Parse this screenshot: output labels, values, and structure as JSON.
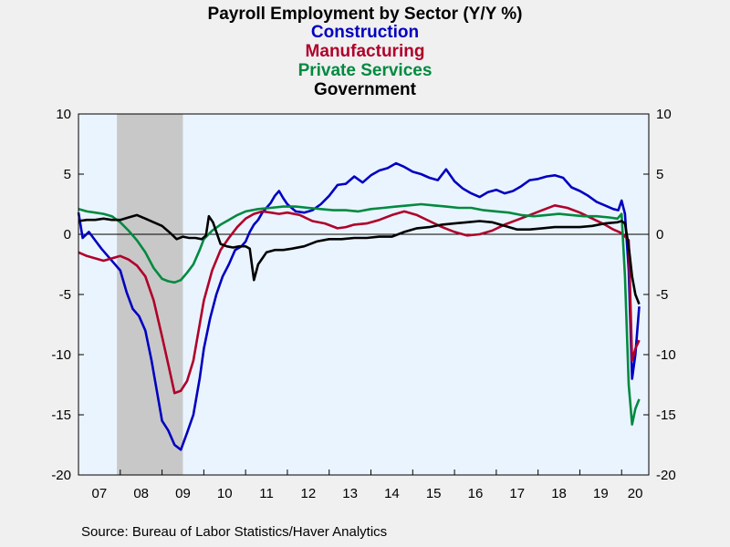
{
  "chart_data": {
    "type": "line",
    "title": "Payroll Employment by Sector (Y/Y %)",
    "xlabel": "",
    "ylabel": "",
    "ylim": [
      -20,
      10
    ],
    "yticks": [
      10,
      5,
      0,
      -5,
      -10,
      -15,
      -20
    ],
    "xlim": [
      2007.0,
      2020.65
    ],
    "year_labels": [
      "07",
      "08",
      "09",
      "10",
      "11",
      "12",
      "13",
      "14",
      "15",
      "16",
      "17",
      "18",
      "19",
      "20"
    ],
    "recession": {
      "start": 2007.92,
      "end": 2009.5,
      "color": "#c8c8c8"
    },
    "plot_background": "#eaf4ff",
    "zero_line": true,
    "source": "Source:  Bureau of Labor Statistics/Haver Analytics",
    "series": [
      {
        "name": "Construction",
        "color": "#0000c0",
        "x": [
          2007.0,
          2007.1,
          2007.25,
          2007.4,
          2007.55,
          2007.7,
          2007.85,
          2008.0,
          2008.15,
          2008.3,
          2008.45,
          2008.6,
          2008.75,
          2008.9,
          2009.0,
          2009.15,
          2009.3,
          2009.45,
          2009.6,
          2009.75,
          2009.9,
          2010.0,
          2010.15,
          2010.3,
          2010.45,
          2010.6,
          2010.75,
          2010.9,
          2011.0,
          2011.1,
          2011.2,
          2011.3,
          2011.4,
          2011.5,
          2011.6,
          2011.7,
          2011.8,
          2011.9,
          2012.0,
          2012.2,
          2012.4,
          2012.6,
          2012.8,
          2013.0,
          2013.2,
          2013.4,
          2013.6,
          2013.8,
          2014.0,
          2014.2,
          2014.4,
          2014.6,
          2014.8,
          2015.0,
          2015.2,
          2015.4,
          2015.6,
          2015.8,
          2016.0,
          2016.2,
          2016.4,
          2016.6,
          2016.8,
          2017.0,
          2017.2,
          2017.4,
          2017.6,
          2017.8,
          2018.0,
          2018.2,
          2018.4,
          2018.6,
          2018.8,
          2019.0,
          2019.2,
          2019.4,
          2019.6,
          2019.8,
          2019.92,
          2020.0,
          2020.08,
          2020.17,
          2020.25,
          2020.33,
          2020.42
        ],
        "values": [
          1.8,
          -0.3,
          0.2,
          -0.5,
          -1.2,
          -1.8,
          -2.4,
          -3.0,
          -4.8,
          -6.2,
          -6.8,
          -8.0,
          -10.5,
          -13.5,
          -15.5,
          -16.3,
          -17.5,
          -17.9,
          -16.5,
          -15.0,
          -12.0,
          -9.5,
          -7.0,
          -5.0,
          -3.5,
          -2.5,
          -1.3,
          -1.0,
          -0.6,
          0.2,
          0.8,
          1.2,
          1.8,
          2.2,
          2.6,
          3.2,
          3.6,
          3.0,
          2.5,
          1.9,
          1.8,
          2.0,
          2.5,
          3.2,
          4.1,
          4.2,
          4.8,
          4.3,
          4.9,
          5.3,
          5.5,
          5.9,
          5.6,
          5.2,
          5.0,
          4.7,
          4.5,
          5.4,
          4.4,
          3.8,
          3.4,
          3.1,
          3.5,
          3.7,
          3.4,
          3.6,
          4.0,
          4.5,
          4.6,
          4.8,
          4.9,
          4.7,
          3.9,
          3.6,
          3.2,
          2.7,
          2.4,
          2.1,
          2.0,
          2.8,
          1.7,
          -3.0,
          -12.0,
          -10.0,
          -6.0
        ]
      },
      {
        "name": "Manufacturing",
        "color": "#b0002a",
        "x": [
          2007.0,
          2007.2,
          2007.4,
          2007.6,
          2007.8,
          2008.0,
          2008.2,
          2008.4,
          2008.6,
          2008.8,
          2009.0,
          2009.15,
          2009.3,
          2009.45,
          2009.6,
          2009.75,
          2009.9,
          2010.0,
          2010.2,
          2010.4,
          2010.6,
          2010.8,
          2011.0,
          2011.2,
          2011.4,
          2011.6,
          2011.8,
          2012.0,
          2012.3,
          2012.6,
          2012.9,
          2013.2,
          2013.4,
          2013.6,
          2013.9,
          2014.2,
          2014.5,
          2014.8,
          2015.1,
          2015.4,
          2015.7,
          2016.0,
          2016.3,
          2016.6,
          2016.9,
          2017.2,
          2017.5,
          2017.8,
          2018.1,
          2018.4,
          2018.7,
          2019.0,
          2019.3,
          2019.6,
          2019.8,
          2020.0,
          2020.17,
          2020.25,
          2020.33,
          2020.42
        ],
        "values": [
          -1.5,
          -1.8,
          -2.0,
          -2.2,
          -2.0,
          -1.8,
          -2.1,
          -2.6,
          -3.5,
          -5.5,
          -8.5,
          -10.8,
          -13.2,
          -13.0,
          -12.2,
          -10.5,
          -7.5,
          -5.5,
          -3.0,
          -1.3,
          -0.3,
          0.6,
          1.3,
          1.7,
          1.9,
          1.8,
          1.7,
          1.8,
          1.6,
          1.1,
          0.9,
          0.5,
          0.6,
          0.8,
          0.9,
          1.2,
          1.6,
          1.9,
          1.6,
          1.1,
          0.6,
          0.2,
          -0.1,
          0.0,
          0.3,
          0.8,
          1.2,
          1.6,
          2.0,
          2.4,
          2.2,
          1.8,
          1.3,
          0.8,
          0.4,
          0.1,
          -0.5,
          -10.5,
          -9.5,
          -8.8
        ]
      },
      {
        "name": "Private Services",
        "color": "#008a40",
        "x": [
          2007.0,
          2007.2,
          2007.4,
          2007.6,
          2007.8,
          2008.0,
          2008.2,
          2008.4,
          2008.6,
          2008.8,
          2009.0,
          2009.15,
          2009.3,
          2009.45,
          2009.6,
          2009.75,
          2009.9,
          2010.0,
          2010.2,
          2010.4,
          2010.6,
          2010.8,
          2011.0,
          2011.3,
          2011.6,
          2011.9,
          2012.2,
          2012.5,
          2012.8,
          2013.1,
          2013.4,
          2013.7,
          2014.0,
          2014.3,
          2014.6,
          2014.9,
          2015.2,
          2015.5,
          2015.8,
          2016.1,
          2016.4,
          2016.7,
          2017.0,
          2017.3,
          2017.6,
          2017.9,
          2018.2,
          2018.5,
          2018.8,
          2019.1,
          2019.4,
          2019.7,
          2019.9,
          2020.0,
          2020.08,
          2020.17,
          2020.25,
          2020.33,
          2020.42
        ],
        "values": [
          2.1,
          1.9,
          1.8,
          1.7,
          1.5,
          1.0,
          0.3,
          -0.5,
          -1.5,
          -2.8,
          -3.7,
          -3.9,
          -4.0,
          -3.8,
          -3.2,
          -2.5,
          -1.3,
          -0.4,
          0.3,
          0.8,
          1.2,
          1.6,
          1.9,
          2.1,
          2.2,
          2.3,
          2.3,
          2.2,
          2.1,
          2.0,
          2.0,
          1.9,
          2.1,
          2.2,
          2.3,
          2.4,
          2.5,
          2.4,
          2.3,
          2.2,
          2.2,
          2.0,
          1.9,
          1.8,
          1.6,
          1.5,
          1.6,
          1.7,
          1.6,
          1.5,
          1.5,
          1.4,
          1.3,
          1.7,
          -3.5,
          -12.5,
          -15.8,
          -14.5,
          -13.7
        ]
      },
      {
        "name": "Government",
        "color": "#000000",
        "x": [
          2007.0,
          2007.2,
          2007.4,
          2007.6,
          2007.8,
          2008.0,
          2008.2,
          2008.4,
          2008.6,
          2008.8,
          2009.0,
          2009.2,
          2009.35,
          2009.5,
          2009.65,
          2009.8,
          2009.95,
          2010.05,
          2010.12,
          2010.22,
          2010.3,
          2010.4,
          2010.55,
          2010.7,
          2010.85,
          2011.0,
          2011.1,
          2011.2,
          2011.3,
          2011.4,
          2011.5,
          2011.7,
          2011.9,
          2012.1,
          2012.4,
          2012.7,
          2013.0,
          2013.3,
          2013.6,
          2013.9,
          2014.2,
          2014.5,
          2014.8,
          2015.1,
          2015.4,
          2015.7,
          2016.0,
          2016.3,
          2016.6,
          2016.9,
          2017.2,
          2017.5,
          2017.8,
          2018.1,
          2018.4,
          2018.7,
          2019.0,
          2019.3,
          2019.6,
          2019.9,
          2020.0,
          2020.08,
          2020.17,
          2020.25,
          2020.33,
          2020.42
        ],
        "values": [
          1.1,
          1.2,
          1.2,
          1.3,
          1.2,
          1.2,
          1.4,
          1.6,
          1.3,
          1.0,
          0.7,
          0.1,
          -0.4,
          -0.2,
          -0.3,
          -0.3,
          -0.4,
          -0.1,
          1.5,
          1.0,
          0.2,
          -0.8,
          -1.0,
          -1.1,
          -1.0,
          -1.0,
          -1.2,
          -3.8,
          -2.5,
          -2.0,
          -1.5,
          -1.3,
          -1.3,
          -1.2,
          -1.0,
          -0.6,
          -0.4,
          -0.4,
          -0.3,
          -0.3,
          -0.2,
          -0.2,
          0.2,
          0.5,
          0.6,
          0.8,
          0.9,
          1.0,
          1.1,
          1.0,
          0.7,
          0.4,
          0.4,
          0.5,
          0.6,
          0.6,
          0.6,
          0.7,
          0.9,
          1.0,
          1.1,
          0.9,
          -1.0,
          -3.5,
          -5.0,
          -5.8
        ]
      }
    ]
  }
}
